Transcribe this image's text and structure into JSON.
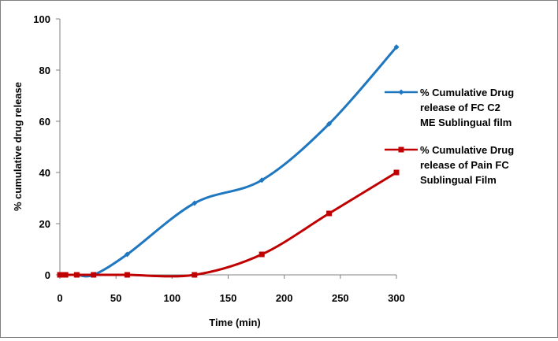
{
  "chart_data": {
    "type": "line",
    "title": "",
    "xlabel": "Time (min)",
    "ylabel": "% cumulative drug release",
    "xlim": [
      0,
      300
    ],
    "ylim": [
      0,
      100
    ],
    "xticks": [
      0,
      50,
      100,
      150,
      200,
      250,
      300
    ],
    "yticks": [
      0,
      20,
      40,
      60,
      80,
      100
    ],
    "x_tick_labels": [
      "0",
      "50",
      "100",
      "150",
      "200",
      "250",
      "300"
    ],
    "y_tick_labels": [
      "0",
      "20",
      "40",
      "60",
      "80",
      "100"
    ],
    "grid": false,
    "legend_position": "right",
    "smooth": true,
    "series": [
      {
        "name": "% Cumulative Drug release of FC C2 ME Sublingual film",
        "legend_lines": [
          "% Cumulative Drug",
          "release of FC C2",
          "ME Sublingual film"
        ],
        "marker": "diamond",
        "color": "#1f77c0",
        "x": [
          0,
          2,
          5,
          15,
          30,
          60,
          120,
          180,
          240,
          300
        ],
        "y": [
          0,
          0,
          0,
          0,
          0,
          8,
          28,
          37,
          59,
          89
        ]
      },
      {
        "name": "% Cumulative Drug release of Pain FC Sublingual Film",
        "legend_lines": [
          "% Cumulative Drug",
          "release of Pain FC",
          "Sublingual Film"
        ],
        "marker": "square",
        "color": "#c00000",
        "x": [
          0,
          2,
          5,
          15,
          30,
          60,
          120,
          180,
          240,
          300
        ],
        "y": [
          0,
          0,
          0,
          0,
          0,
          0,
          0,
          8,
          24,
          40
        ]
      }
    ]
  }
}
